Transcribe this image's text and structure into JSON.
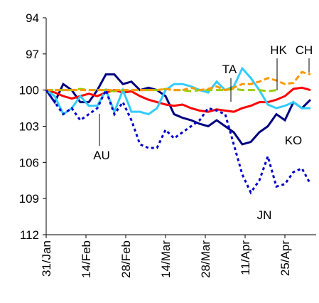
{
  "chart_data": {
    "type": "line",
    "xlim": [
      0,
      95
    ],
    "xticks": [
      {
        "value": 0,
        "label": "31/Jan"
      },
      {
        "value": 14,
        "label": "14/Feb"
      },
      {
        "value": 28,
        "label": "28/Feb"
      },
      {
        "value": 42,
        "label": "14/Mar"
      },
      {
        "value": 56,
        "label": "28/Mar"
      },
      {
        "value": 70,
        "label": "11/Apr"
      },
      {
        "value": 84,
        "label": "25/Apr"
      }
    ],
    "ylim": [
      94,
      112
    ],
    "yticks": [
      94,
      97,
      100,
      103,
      106,
      109,
      112
    ],
    "y_inverted": true,
    "x": [
      0,
      3,
      6,
      9,
      12,
      15,
      18,
      21,
      24,
      27,
      30,
      33,
      36,
      39,
      42,
      45,
      48,
      51,
      54,
      57,
      60,
      63,
      66,
      69,
      72,
      75,
      78,
      81,
      84,
      87,
      90,
      93
    ],
    "series": [
      {
        "name": "KO",
        "color": "#000080",
        "dash": "none",
        "values": [
          100,
          101,
          99.5,
          100,
          101,
          101,
          100,
          98.7,
          98.7,
          99.5,
          99.3,
          100,
          99.8,
          100,
          100.5,
          102,
          102.3,
          102.5,
          102.8,
          103,
          102.5,
          103,
          103.5,
          104.5,
          104.3,
          103.5,
          103,
          102,
          102.5,
          101,
          101.5,
          100.8
        ]
      },
      {
        "name": "TA",
        "color": "#ff0000",
        "dash": "none",
        "values": [
          100,
          100.2,
          100.5,
          100.7,
          100.5,
          100.3,
          100.5,
          100.2,
          100,
          100.2,
          100.1,
          100.5,
          100.8,
          101,
          101.2,
          101.3,
          101.2,
          101.5,
          101.7,
          101.8,
          101.6,
          101.7,
          101.8,
          101.5,
          101.3,
          101,
          101,
          100.8,
          100.5,
          99.9,
          99.8,
          100
        ]
      },
      {
        "name": "AU",
        "color": "#33ccff",
        "dash": "none",
        "values": [
          100,
          100.5,
          102,
          101.5,
          100.5,
          101.3,
          101.3,
          100,
          101.8,
          100,
          101.8,
          101.8,
          102,
          101.5,
          100,
          99.5,
          99.5,
          99.7,
          100,
          100.2,
          99.3,
          100,
          99.7,
          98.2,
          99,
          100,
          101.2,
          101.5,
          101.3,
          101,
          101.5,
          101.5
        ]
      },
      {
        "name": "HK",
        "color": "#99cc00",
        "dash": "10 5",
        "values": [
          100,
          100,
          100,
          100,
          99.9,
          100,
          100,
          100,
          100.1,
          100,
          100,
          100,
          100,
          100,
          99.9,
          100,
          100,
          100.1,
          100,
          100,
          100,
          100,
          99.9,
          100,
          100,
          100,
          100.1,
          100,
          null,
          null,
          null,
          null
        ]
      },
      {
        "name": "CH",
        "color": "#ff9900",
        "dash": "8 4",
        "values": [
          100,
          100,
          100,
          100,
          100,
          100,
          100,
          100,
          100,
          100,
          100,
          100,
          100,
          100,
          99.9,
          100,
          100,
          99.8,
          100,
          99.9,
          99.7,
          100,
          99.8,
          99.5,
          99.5,
          99.3,
          99,
          99.2,
          99.5,
          99.4,
          98.5,
          98.7
        ]
      },
      {
        "name": "JN",
        "color": "#0000cc",
        "dash": "4 4",
        "values": [
          100,
          101,
          102,
          101.5,
          102.5,
          102,
          101.5,
          100,
          102,
          101,
          102.5,
          104.5,
          104.8,
          104.8,
          103.3,
          104,
          103.5,
          103,
          102.5,
          101.5,
          101.7,
          102,
          104.5,
          107,
          108.5,
          107.5,
          105.5,
          108,
          107.8,
          106.8,
          106.5,
          107.8
        ]
      }
    ]
  }
}
